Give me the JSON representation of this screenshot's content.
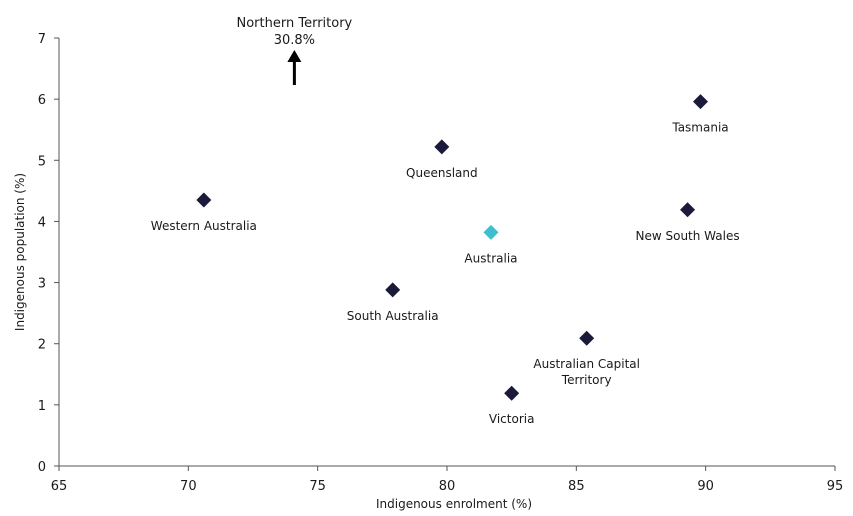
{
  "chart_data": {
    "type": "scatter",
    "title": "",
    "xlabel": "Indigenous enrolment (%)",
    "ylabel": "Indigenous population (%)",
    "xlim": [
      65,
      95
    ],
    "ylim": [
      0,
      7
    ],
    "xticks": [
      "65",
      "70",
      "75",
      "80",
      "85",
      "90",
      "95"
    ],
    "yticks": [
      "0",
      "1",
      "2",
      "3",
      "4",
      "5",
      "6",
      "7"
    ],
    "grid": false,
    "marker": "diamond",
    "colors": {
      "state": "#1c1a3a",
      "national": "#3dbfcf"
    },
    "points": [
      {
        "name": "Western Australia",
        "x": 70.6,
        "y": 4.35,
        "kind": "state"
      },
      {
        "name": "South Australia",
        "x": 77.9,
        "y": 2.88,
        "kind": "state"
      },
      {
        "name": "Queensland",
        "x": 79.8,
        "y": 5.22,
        "kind": "state"
      },
      {
        "name": "Australia",
        "x": 81.7,
        "y": 3.82,
        "kind": "national"
      },
      {
        "name": "Victoria",
        "x": 82.5,
        "y": 1.19,
        "kind": "state"
      },
      {
        "name": "Australian Capital Territory",
        "x": 85.4,
        "y": 2.09,
        "kind": "state"
      },
      {
        "name": "New South Wales",
        "x": 89.3,
        "y": 4.19,
        "kind": "state"
      },
      {
        "name": "Tasmania",
        "x": 89.8,
        "y": 5.96,
        "kind": "state"
      }
    ],
    "annotations": [
      {
        "name": "Northern Territory",
        "value": "30.8%",
        "x": 74.1,
        "direction": "up-off-scale"
      }
    ]
  }
}
